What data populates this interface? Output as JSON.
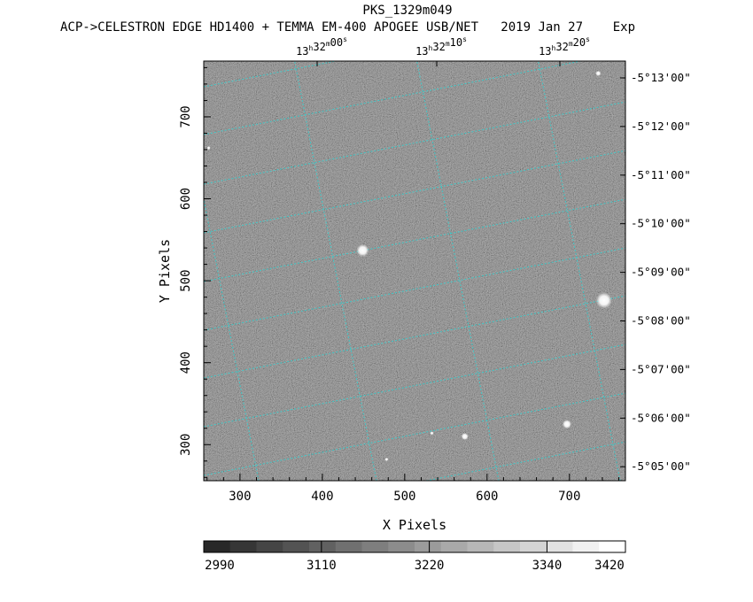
{
  "title": "PKS_1329m049",
  "subtitle": "ACP->CELESTRON EDGE HD1400 + TEMMA EM-400 APOGEE USB/NET   2019 Jan 27    Exp",
  "xlabel": "X Pixels",
  "ylabel": "Y Pixels",
  "x_ticks": [
    "300",
    "400",
    "500",
    "600",
    "700"
  ],
  "x_tick_values": [
    300,
    400,
    500,
    600,
    700
  ],
  "y_ticks": [
    "300",
    "400",
    "500",
    "600",
    "700"
  ],
  "y_tick_values": [
    300,
    400,
    500,
    600,
    700
  ],
  "x_range": [
    256,
    768
  ],
  "y_range": [
    256,
    768
  ],
  "ra_labels": [
    {
      "h": "13",
      "m": "32",
      "s": "00"
    },
    {
      "h": "13",
      "m": "32",
      "s": "10"
    },
    {
      "h": "13",
      "m": "32",
      "s": "20"
    }
  ],
  "dec_labels": [
    "-5°13'00\"",
    "-5°12'00\"",
    "-5°11'00\"",
    "-5°10'00\"",
    "-5°09'00\"",
    "-5°08'00\"",
    "-5°07'00\"",
    "-5°06'00\"",
    "-5°05'00\""
  ],
  "colorbar": {
    "labels": [
      "2990",
      "3110",
      "3220",
      "3340",
      "3420"
    ],
    "min": 2990,
    "max": 3420
  },
  "colors": {
    "grid": "#3fc9c9",
    "background": "#ffffff",
    "image_mid": "#7a7a7a"
  }
}
